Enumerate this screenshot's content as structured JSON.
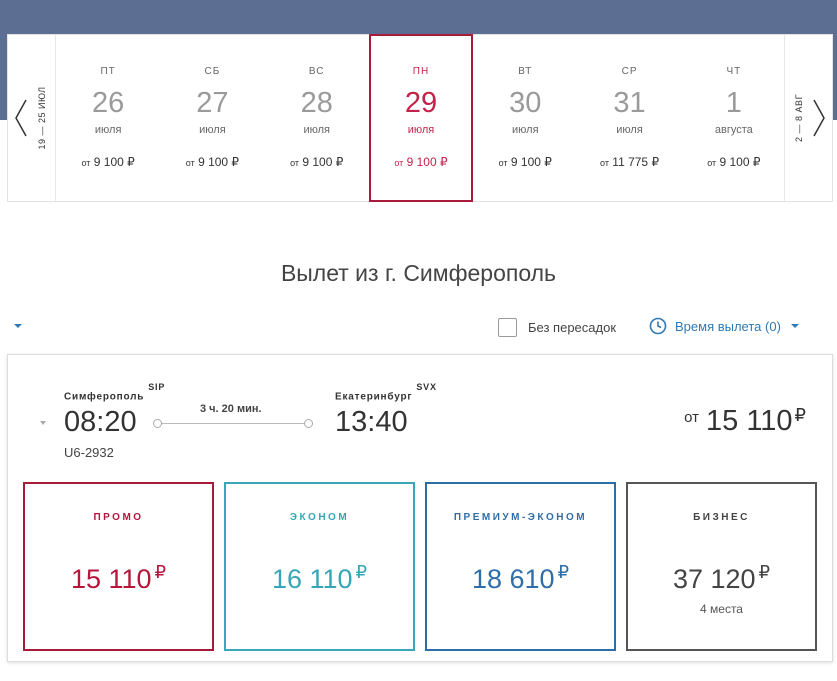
{
  "date_nav": {
    "prev_week_label": "19 — 25 ИЮЛ",
    "next_week_label": "2 — 8 АВГ",
    "days": [
      {
        "weekday": "ПТ",
        "day": "26",
        "month": "июля",
        "price_prefix": "от",
        "price": "9 100 ₽",
        "active": false
      },
      {
        "weekday": "СБ",
        "day": "27",
        "month": "июля",
        "price_prefix": "от",
        "price": "9 100 ₽",
        "active": false
      },
      {
        "weekday": "ВС",
        "day": "28",
        "month": "июля",
        "price_prefix": "от",
        "price": "9 100 ₽",
        "active": false
      },
      {
        "weekday": "ПН",
        "day": "29",
        "month": "июля",
        "price_prefix": "от",
        "price": "9 100 ₽",
        "active": true
      },
      {
        "weekday": "ВТ",
        "day": "30",
        "month": "июля",
        "price_prefix": "от",
        "price": "9 100 ₽",
        "active": false
      },
      {
        "weekday": "СР",
        "day": "31",
        "month": "июля",
        "price_prefix": "от",
        "price": "11 775 ₽",
        "active": false
      },
      {
        "weekday": "ЧТ",
        "day": "1",
        "month": "августа",
        "price_prefix": "от",
        "price": "9 100 ₽",
        "active": false
      }
    ]
  },
  "section": {
    "title": "Вылет из г. Симферополь"
  },
  "filters": {
    "direct_label": "Без пересадок",
    "direct_checked": false,
    "time_label": "Время вылета (0)"
  },
  "flight": {
    "from_city": "Симферополь",
    "from_code": "SIP",
    "departure_time": "08:20",
    "flight_number": "U6-2932",
    "duration": "3 ч. 20 мин.",
    "to_city": "Екатеринбург",
    "to_code": "SVX",
    "arrival_time": "13:40",
    "from_price_prefix": "от",
    "from_price": "15 110",
    "currency": "₽",
    "fares": [
      {
        "name": "ПРОМО",
        "price": "15 110",
        "seats": ""
      },
      {
        "name": "ЭКОНОМ",
        "price": "16 110",
        "seats": ""
      },
      {
        "name": "ПРЕМИУМ-ЭКОНОМ",
        "price": "18 610",
        "seats": ""
      },
      {
        "name": "БИЗНЕС",
        "price": "37 120",
        "seats": "4 места"
      }
    ]
  },
  "colors": {
    "header_band": "#5c6e92",
    "active_accent": "#a81a3a",
    "link_blue": "#2f79b5",
    "promo": "#a81a3a",
    "econom": "#3aa7b8",
    "premium": "#2d6ea8",
    "business": "#555555"
  }
}
